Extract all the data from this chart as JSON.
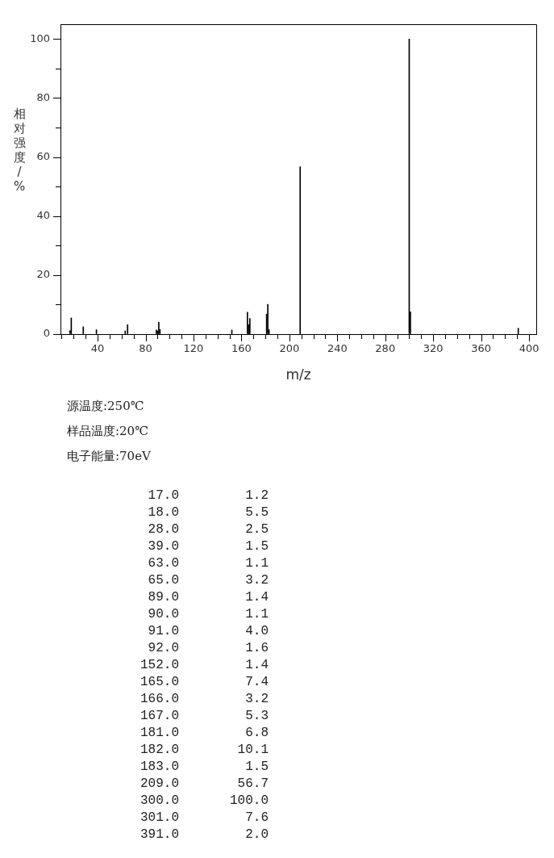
{
  "chart_data": [
    {
      "type": "bar",
      "xlabel": "m/z",
      "ylabel": "相对强度/%",
      "x": [
        17,
        18,
        28,
        39,
        63,
        65,
        89,
        90,
        91,
        92,
        152,
        165,
        166,
        167,
        181,
        182,
        183,
        209,
        300,
        301,
        391
      ],
      "values": [
        1.2,
        5.5,
        2.5,
        1.5,
        1.1,
        3.2,
        1.4,
        1.1,
        4.0,
        1.6,
        1.4,
        7.4,
        3.2,
        5.3,
        6.8,
        10.1,
        1.5,
        56.7,
        100.0,
        7.6,
        2.0
      ],
      "color": "#000000",
      "xlim": [
        9,
        406
      ],
      "xticks": [
        {
          "value": 10,
          "label": null
        },
        {
          "value": 20,
          "label": null
        },
        {
          "value": 30,
          "label": null
        },
        40,
        {
          "value": 50,
          "label": null
        },
        {
          "value": 60,
          "label": null
        },
        {
          "value": 70,
          "label": null
        },
        80,
        {
          "value": 90,
          "label": null
        },
        {
          "value": 100,
          "label": null
        },
        {
          "value": 110,
          "label": null
        },
        120,
        {
          "value": 130,
          "label": null
        },
        {
          "value": 140,
          "label": null
        },
        {
          "value": 150,
          "label": null
        },
        160,
        {
          "value": 170,
          "label": null
        },
        {
          "value": 180,
          "label": null
        },
        {
          "value": 190,
          "label": null
        },
        200,
        {
          "value": 210,
          "label": null
        },
        {
          "value": 220,
          "label": null
        },
        {
          "value": 230,
          "label": null
        },
        240,
        {
          "value": 250,
          "label": null
        },
        {
          "value": 260,
          "label": null
        },
        {
          "value": 270,
          "label": null
        },
        280,
        {
          "value": 290,
          "label": null
        },
        {
          "value": 300,
          "label": null
        },
        {
          "value": 310,
          "label": null
        },
        320,
        {
          "value": 330,
          "label": null
        },
        {
          "value": 340,
          "label": null
        },
        {
          "value": 350,
          "label": null
        },
        360,
        {
          "value": 370,
          "label": null
        },
        {
          "value": 380,
          "label": null
        },
        {
          "value": 390,
          "label": null
        },
        400
      ],
      "ylim": [
        0,
        105
      ],
      "yticks": [
        0,
        {
          "value": 10,
          "label": null
        },
        20,
        {
          "value": 30,
          "label": null
        },
        40,
        {
          "value": 50,
          "label": null
        },
        60,
        {
          "value": 70,
          "label": null
        },
        80,
        {
          "value": 90,
          "label": null
        },
        100
      ],
      "grid": false,
      "legend": false,
      "annotations": [
        "源温度:250℃",
        "样品温度:20℃",
        "电子能量:70eV"
      ]
    },
    {
      "type": "other",
      "annotations": [
        "17.0",
        "1.2",
        "18.0",
        "5.5",
        "28.0",
        "2.5",
        "39.0",
        "1.5",
        "63.0",
        "1.1",
        "65.0",
        "3.2",
        "89.0",
        "1.4",
        "90.0",
        "1.1",
        "91.0",
        "4.0",
        "92.0",
        "1.6",
        "152.0",
        "1.4",
        "165.0",
        "7.4",
        "166.0",
        "3.2",
        "167.0",
        "5.3",
        "181.0",
        "6.8",
        "182.0",
        "10.1",
        "183.0",
        "1.5",
        "209.0",
        "56.7",
        "300.0",
        "100.0",
        "301.0",
        "7.6",
        "391.0",
        "2.0"
      ]
    }
  ]
}
